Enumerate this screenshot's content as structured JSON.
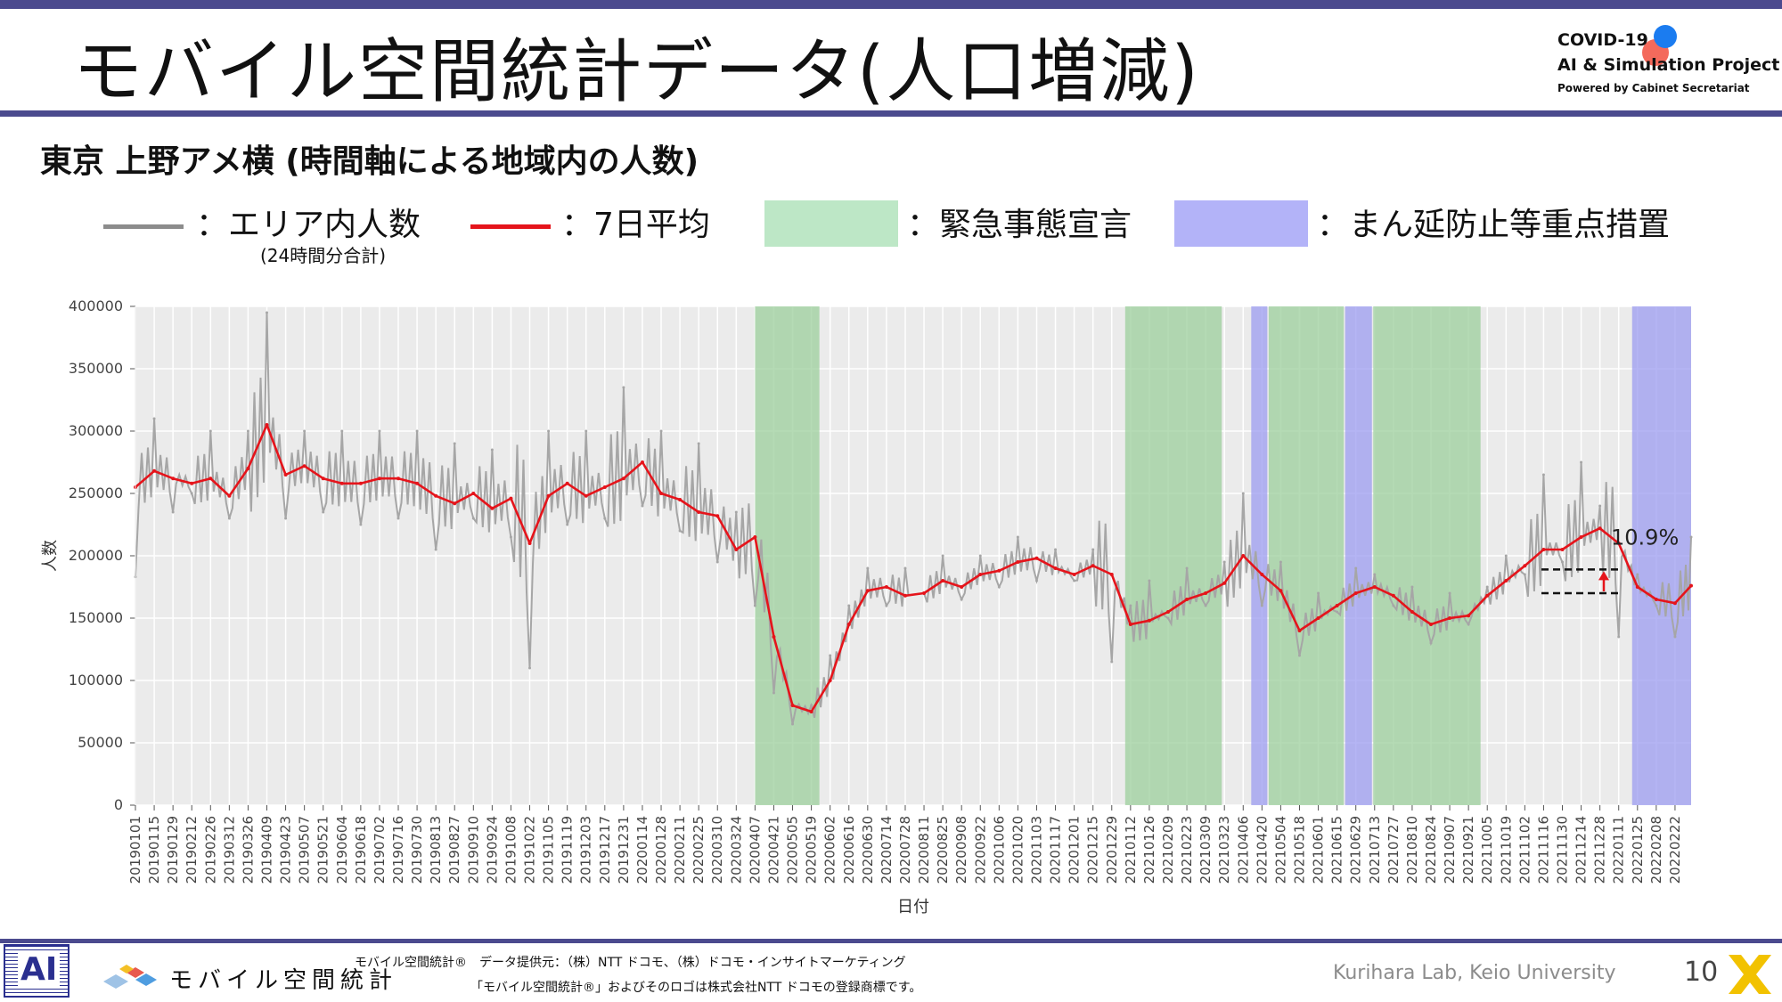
{
  "header": {
    "title": "モバイル空間統計データ(人口増減)",
    "logo_line1": "COVID-19",
    "logo_line2": "AI & Simulation Project",
    "logo_line3": "Powered by Cabinet Secretariat"
  },
  "subtitle": "東京 上野アメ横 (時間軸による地域内の人数)",
  "legend": {
    "area_pop": "：エリア内人数",
    "area_pop_note": "(24時間分合計)",
    "avg7": "：7日平均",
    "emergency": "：緊急事態宣言",
    "priority": "：まん延防止等重点措置"
  },
  "colors": {
    "raw_line": "#a6a6a6",
    "avg_line": "#e5141b",
    "emergency": "#9ccf9c",
    "priority": "#9c9cf0",
    "plot_bg": "#ebebeb",
    "header_rule": "#4b4a8e"
  },
  "chart_data": {
    "type": "line",
    "title": "",
    "xlabel": "日付",
    "ylabel": "人数",
    "ylim": [
      0,
      400000
    ],
    "yticks": [
      0,
      50000,
      100000,
      150000,
      200000,
      250000,
      300000,
      350000,
      400000
    ],
    "xlim": [
      "2019-01-01",
      "2022-03-06"
    ],
    "xticks": [
      "20190101",
      "20190115",
      "20190129",
      "20190212",
      "20190226",
      "20190312",
      "20190326",
      "20190409",
      "20190423",
      "20190507",
      "20190521",
      "20190604",
      "20190618",
      "20190702",
      "20190716",
      "20190730",
      "20190813",
      "20190827",
      "20190910",
      "20190924",
      "20191008",
      "20191022",
      "20191105",
      "20191119",
      "20191203",
      "20191217",
      "20191231",
      "20200114",
      "20200128",
      "20200211",
      "20200225",
      "20200310",
      "20200324",
      "20200407",
      "20200421",
      "20200505",
      "20200519",
      "20200602",
      "20200616",
      "20200630",
      "20200714",
      "20200728",
      "20200811",
      "20200825",
      "20200908",
      "20200922",
      "20201006",
      "20201020",
      "20201103",
      "20201117",
      "20201201",
      "20201215",
      "20201229",
      "20210112",
      "20210126",
      "20210209",
      "20210223",
      "20210309",
      "20210323",
      "20210406",
      "20210420",
      "20210504",
      "20210518",
      "20210601",
      "20210615",
      "20210629",
      "20210713",
      "20210727",
      "20210810",
      "20210824",
      "20210907",
      "20210921",
      "20211005",
      "20211019",
      "20211102",
      "20211116",
      "20211130",
      "20211214",
      "20211228",
      "20220111",
      "20220125",
      "20220208",
      "20220222"
    ],
    "grid": true,
    "series": [
      {
        "name": "7日平均",
        "x": [
          "20190101",
          "20190115",
          "20190129",
          "20190212",
          "20190226",
          "20190312",
          "20190326",
          "20190409",
          "20190423",
          "20190507",
          "20190521",
          "20190604",
          "20190618",
          "20190702",
          "20190716",
          "20190730",
          "20190813",
          "20190827",
          "20190910",
          "20190924",
          "20191008",
          "20191022",
          "20191105",
          "20191119",
          "20191203",
          "20191217",
          "20191231",
          "20200114",
          "20200128",
          "20200211",
          "20200225",
          "20200310",
          "20200324",
          "20200407",
          "20200421",
          "20200505",
          "20200519",
          "20200602",
          "20200616",
          "20200630",
          "20200714",
          "20200728",
          "20200811",
          "20200825",
          "20200908",
          "20200922",
          "20201006",
          "20201020",
          "20201103",
          "20201117",
          "20201201",
          "20201215",
          "20201229",
          "20210112",
          "20210126",
          "20210209",
          "20210223",
          "20210309",
          "20210323",
          "20210406",
          "20210420",
          "20210504",
          "20210518",
          "20210601",
          "20210615",
          "20210629",
          "20210713",
          "20210727",
          "20210810",
          "20210824",
          "20210907",
          "20210921",
          "20211005",
          "20211019",
          "20211102",
          "20211116",
          "20211130",
          "20211214",
          "20211228",
          "20220111",
          "20220125",
          "20220208",
          "20220222",
          "20220306"
        ],
        "values": [
          255000,
          268000,
          262000,
          258000,
          262000,
          248000,
          270000,
          305000,
          265000,
          272000,
          262000,
          258000,
          258000,
          262000,
          262000,
          258000,
          248000,
          242000,
          250000,
          238000,
          246000,
          210000,
          248000,
          258000,
          248000,
          255000,
          262000,
          275000,
          250000,
          245000,
          235000,
          232000,
          205000,
          215000,
          135000,
          80000,
          75000,
          100000,
          145000,
          172000,
          175000,
          168000,
          170000,
          180000,
          175000,
          185000,
          188000,
          195000,
          198000,
          190000,
          185000,
          192000,
          185000,
          145000,
          148000,
          155000,
          165000,
          170000,
          178000,
          200000,
          185000,
          172000,
          140000,
          150000,
          160000,
          170000,
          175000,
          168000,
          155000,
          145000,
          150000,
          152000,
          168000,
          180000,
          192000,
          205000,
          205000,
          215000,
          222000,
          210000,
          175000,
          165000,
          162000,
          176000
        ]
      },
      {
        "name": "エリア内人数",
        "values": [
          183000,
          310000,
          235000,
          250000,
          300000,
          230000,
          300000,
          395000,
          230000,
          300000,
          235000,
          300000,
          225000,
          300000,
          230000,
          300000,
          205000,
          290000,
          230000,
          285000,
          215000,
          110000,
          300000,
          225000,
          300000,
          230000,
          335000,
          240000,
          300000,
          220000,
          290000,
          195000,
          235000,
          160000,
          90000,
          65000,
          80000,
          120000,
          160000,
          190000,
          160000,
          190000,
          170000,
          200000,
          165000,
          200000,
          175000,
          215000,
          180000,
          205000,
          180000,
          205000,
          115000,
          160000,
          180000,
          150000,
          190000,
          160000,
          195000,
          250000,
          160000,
          195000,
          120000,
          170000,
          155000,
          190000,
          185000,
          160000,
          175000,
          130000,
          170000,
          145000,
          175000,
          200000,
          185000,
          265000,
          195000,
          275000,
          240000,
          135000,
          185000,
          160000,
          135000,
          215000
        ]
      }
    ],
    "shaded_periods": [
      {
        "type": "緊急事態宣言",
        "start": "20200407",
        "end": "20200525"
      },
      {
        "type": "緊急事態宣言",
        "start": "20210108",
        "end": "20210321"
      },
      {
        "type": "まん延防止等重点措置",
        "start": "20210412",
        "end": "20210424"
      },
      {
        "type": "緊急事態宣言",
        "start": "20210425",
        "end": "20210620"
      },
      {
        "type": "まん延防止等重点措置",
        "start": "20210621",
        "end": "20210711"
      },
      {
        "type": "緊急事態宣言",
        "start": "20210712",
        "end": "20210930"
      },
      {
        "type": "まん延防止等重点措置",
        "start": "20220121",
        "end": "20220306"
      }
    ],
    "annotation": {
      "text": "10.9%",
      "from": 170000,
      "to": 189000
    }
  },
  "footer": {
    "mobile_logo_text": "モバイル空間統計",
    "provider_line": "モバイル空間統計®　データ提供元：（株）NTT ドコモ、（株）ドコモ・インサイトマーケティング",
    "trademark_line": "「モバイル空間統計®」およびそのロゴは株式会社NTT ドコモの登録商標です。",
    "lab": "Kurihara Lab, Keio University",
    "page": "10"
  }
}
